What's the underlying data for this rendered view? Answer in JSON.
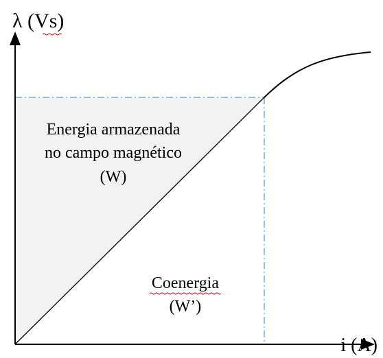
{
  "axes": {
    "y_label": "λ (Vs)",
    "x_label": "i (A)"
  },
  "regions": {
    "energy": [
      "Energia armazenada",
      "no campo magnético",
      "(W)"
    ],
    "coenergy": [
      "Coenergia",
      "(W’)"
    ]
  }
}
